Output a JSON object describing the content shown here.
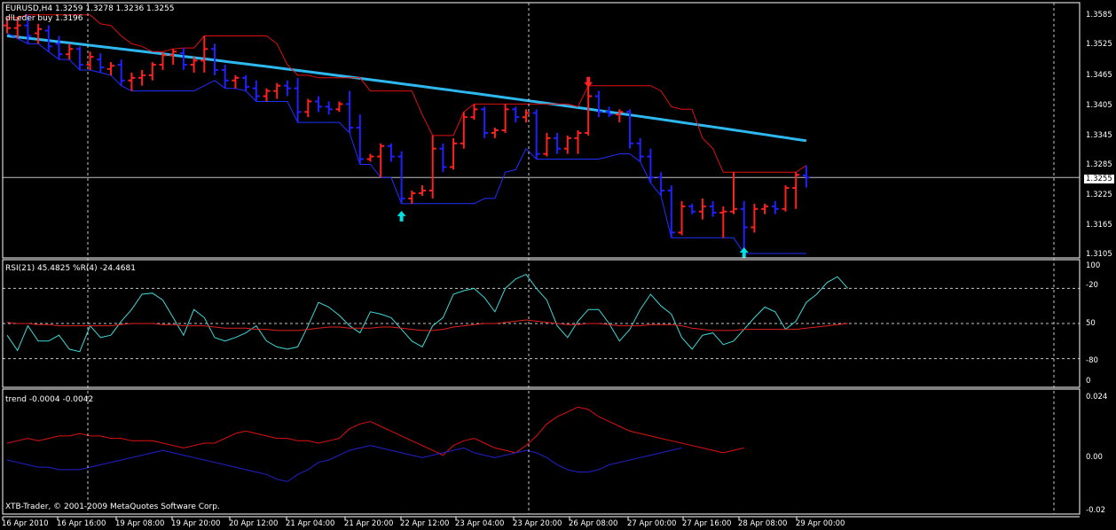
{
  "panes": {
    "main": {
      "header_line1": "EURUSD,H4  1.3259 1.3278 1.3236 1.3255",
      "header_line2": "dlLeder buy 1.3196",
      "price_labels": [
        "1.3585",
        "1.3525",
        "1.3465",
        "1.3405",
        "1.3345",
        "1.3285",
        "1.3225",
        "1.3165",
        "1.3105"
      ],
      "current_price": "1.3255"
    },
    "rsi": {
      "header": "RSI(21) 45.4825  %R(4) -24.4681",
      "scale_labels": [
        "100",
        "-20",
        "50",
        "-80",
        "0"
      ]
    },
    "trend": {
      "header": "trend -0.0004 -0.0042",
      "scale_labels": [
        "0.024",
        "0.00",
        "-0.02"
      ],
      "copyright": "XTB-Trader, © 2001-2009 MetaQuotes Software Corp."
    }
  },
  "time_labels": [
    "16 Apr 2010",
    "16 Apr 16:00",
    "19 Apr 08:00",
    "19 Apr 20:00",
    "20 Apr 12:00",
    "21 Apr 04:00",
    "21 Apr 20:00",
    "22 Apr 12:00",
    "23 Apr 04:00",
    "23 Apr 20:00",
    "26 Apr 08:00",
    "27 Apr 00:00",
    "27 Apr 16:00",
    "28 Apr 08:00",
    "29 Apr 00:00"
  ],
  "colors": {
    "bull": "#ff2020",
    "bear": "#2020ff",
    "ma_long": "#2fb8f0",
    "envelope_upper": "#e01010",
    "envelope_lower": "#2030ff",
    "rsi": "#3fd8d8",
    "rsi_slow": "#e02020",
    "trend_up": "#e01010",
    "trend_down": "#2020d0",
    "signal_arrow_up": "#00e0e0",
    "signal_arrow_down": "#ff2020",
    "grid": "#c8c8c8"
  },
  "chart_data": {
    "type": "candlestick-bars",
    "symbol": "EURUSD",
    "timeframe": "H4",
    "ylim": [
      1.3105,
      1.3585
    ],
    "bars": [
      {
        "o": 1.3545,
        "h": 1.356,
        "l": 1.353,
        "c": 1.354,
        "dir": "up"
      },
      {
        "o": 1.354,
        "h": 1.356,
        "l": 1.352,
        "c": 1.3545,
        "dir": "up"
      },
      {
        "o": 1.3545,
        "h": 1.3565,
        "l": 1.351,
        "c": 1.3525,
        "dir": "down"
      },
      {
        "o": 1.353,
        "h": 1.3548,
        "l": 1.351,
        "c": 1.3538,
        "dir": "up"
      },
      {
        "o": 1.3535,
        "h": 1.3545,
        "l": 1.3495,
        "c": 1.3505,
        "dir": "down"
      },
      {
        "o": 1.351,
        "h": 1.3525,
        "l": 1.348,
        "c": 1.349,
        "dir": "down"
      },
      {
        "o": 1.349,
        "h": 1.351,
        "l": 1.348,
        "c": 1.35,
        "dir": "up"
      },
      {
        "o": 1.35,
        "h": 1.3505,
        "l": 1.346,
        "c": 1.347,
        "dir": "down"
      },
      {
        "o": 1.347,
        "h": 1.3495,
        "l": 1.346,
        "c": 1.3485,
        "dir": "up"
      },
      {
        "o": 1.348,
        "h": 1.3492,
        "l": 1.3455,
        "c": 1.3465,
        "dir": "down"
      },
      {
        "o": 1.3462,
        "h": 1.3475,
        "l": 1.345,
        "c": 1.3468,
        "dir": "up"
      },
      {
        "o": 1.347,
        "h": 1.348,
        "l": 1.343,
        "c": 1.344,
        "dir": "down"
      },
      {
        "o": 1.344,
        "h": 1.3455,
        "l": 1.342,
        "c": 1.3445,
        "dir": "up"
      },
      {
        "o": 1.3445,
        "h": 1.346,
        "l": 1.343,
        "c": 1.345,
        "dir": "up"
      },
      {
        "o": 1.345,
        "h": 1.3475,
        "l": 1.344,
        "c": 1.347,
        "dir": "up"
      },
      {
        "o": 1.347,
        "h": 1.3495,
        "l": 1.346,
        "c": 1.3488,
        "dir": "up"
      },
      {
        "o": 1.3488,
        "h": 1.35,
        "l": 1.347,
        "c": 1.3495,
        "dir": "up"
      },
      {
        "o": 1.3492,
        "h": 1.3502,
        "l": 1.346,
        "c": 1.347,
        "dir": "down"
      },
      {
        "o": 1.347,
        "h": 1.3485,
        "l": 1.3455,
        "c": 1.3478,
        "dir": "up"
      },
      {
        "o": 1.3478,
        "h": 1.3525,
        "l": 1.3455,
        "c": 1.35,
        "dir": "up"
      },
      {
        "o": 1.35,
        "h": 1.351,
        "l": 1.345,
        "c": 1.346,
        "dir": "down"
      },
      {
        "o": 1.346,
        "h": 1.347,
        "l": 1.3425,
        "c": 1.344,
        "dir": "down"
      },
      {
        "o": 1.344,
        "h": 1.345,
        "l": 1.3425,
        "c": 1.3445,
        "dir": "up"
      },
      {
        "o": 1.3445,
        "h": 1.345,
        "l": 1.342,
        "c": 1.3428,
        "dir": "down"
      },
      {
        "o": 1.3425,
        "h": 1.344,
        "l": 1.34,
        "c": 1.341,
        "dir": "down"
      },
      {
        "o": 1.341,
        "h": 1.3425,
        "l": 1.34,
        "c": 1.342,
        "dir": "up"
      },
      {
        "o": 1.342,
        "h": 1.3435,
        "l": 1.3405,
        "c": 1.343,
        "dir": "up"
      },
      {
        "o": 1.343,
        "h": 1.344,
        "l": 1.341,
        "c": 1.3425,
        "dir": "down"
      },
      {
        "o": 1.3425,
        "h": 1.3445,
        "l": 1.336,
        "c": 1.338,
        "dir": "down"
      },
      {
        "o": 1.338,
        "h": 1.3405,
        "l": 1.337,
        "c": 1.34,
        "dir": "up"
      },
      {
        "o": 1.34,
        "h": 1.341,
        "l": 1.338,
        "c": 1.339,
        "dir": "down"
      },
      {
        "o": 1.339,
        "h": 1.34,
        "l": 1.3375,
        "c": 1.3385,
        "dir": "down"
      },
      {
        "o": 1.3385,
        "h": 1.34,
        "l": 1.338,
        "c": 1.3395,
        "dir": "up"
      },
      {
        "o": 1.3395,
        "h": 1.342,
        "l": 1.334,
        "c": 1.335,
        "dir": "down"
      },
      {
        "o": 1.335,
        "h": 1.3375,
        "l": 1.328,
        "c": 1.329,
        "dir": "down"
      },
      {
        "o": 1.329,
        "h": 1.33,
        "l": 1.3285,
        "c": 1.3295,
        "dir": "up"
      },
      {
        "o": 1.3295,
        "h": 1.332,
        "l": 1.3255,
        "c": 1.3315,
        "dir": "up"
      },
      {
        "o": 1.3315,
        "h": 1.332,
        "l": 1.3285,
        "c": 1.3295,
        "dir": "down"
      },
      {
        "o": 1.3295,
        "h": 1.3305,
        "l": 1.3205,
        "c": 1.3215,
        "dir": "down"
      },
      {
        "o": 1.3215,
        "h": 1.323,
        "l": 1.3205,
        "c": 1.3225,
        "dir": "up"
      },
      {
        "o": 1.3225,
        "h": 1.324,
        "l": 1.322,
        "c": 1.323,
        "dir": "up"
      },
      {
        "o": 1.323,
        "h": 1.3335,
        "l": 1.3215,
        "c": 1.331,
        "dir": "up"
      },
      {
        "o": 1.331,
        "h": 1.332,
        "l": 1.3265,
        "c": 1.3275,
        "dir": "down"
      },
      {
        "o": 1.3275,
        "h": 1.333,
        "l": 1.327,
        "c": 1.332,
        "dir": "up"
      },
      {
        "o": 1.332,
        "h": 1.338,
        "l": 1.331,
        "c": 1.337,
        "dir": "up"
      },
      {
        "o": 1.337,
        "h": 1.3395,
        "l": 1.3365,
        "c": 1.3385,
        "dir": "up"
      },
      {
        "o": 1.3385,
        "h": 1.339,
        "l": 1.333,
        "c": 1.334,
        "dir": "down"
      },
      {
        "o": 1.334,
        "h": 1.335,
        "l": 1.333,
        "c": 1.3345,
        "dir": "up"
      },
      {
        "o": 1.3345,
        "h": 1.3395,
        "l": 1.334,
        "c": 1.3385,
        "dir": "up"
      },
      {
        "o": 1.3385,
        "h": 1.339,
        "l": 1.336,
        "c": 1.337,
        "dir": "down"
      },
      {
        "o": 1.337,
        "h": 1.3385,
        "l": 1.336,
        "c": 1.3378,
        "dir": "up"
      },
      {
        "o": 1.3378,
        "h": 1.3385,
        "l": 1.329,
        "c": 1.33,
        "dir": "down"
      },
      {
        "o": 1.33,
        "h": 1.334,
        "l": 1.3295,
        "c": 1.333,
        "dir": "up"
      },
      {
        "o": 1.333,
        "h": 1.334,
        "l": 1.33,
        "c": 1.331,
        "dir": "down"
      },
      {
        "o": 1.331,
        "h": 1.3335,
        "l": 1.33,
        "c": 1.333,
        "dir": "up"
      },
      {
        "o": 1.333,
        "h": 1.3345,
        "l": 1.33,
        "c": 1.334,
        "dir": "up"
      },
      {
        "o": 1.334,
        "h": 1.343,
        "l": 1.3335,
        "c": 1.341,
        "dir": "up"
      },
      {
        "o": 1.341,
        "h": 1.342,
        "l": 1.337,
        "c": 1.338,
        "dir": "down"
      },
      {
        "o": 1.338,
        "h": 1.339,
        "l": 1.337,
        "c": 1.3375,
        "dir": "down"
      },
      {
        "o": 1.3375,
        "h": 1.3385,
        "l": 1.336,
        "c": 1.338,
        "dir": "up"
      },
      {
        "o": 1.338,
        "h": 1.3385,
        "l": 1.331,
        "c": 1.332,
        "dir": "down"
      },
      {
        "o": 1.332,
        "h": 1.333,
        "l": 1.3285,
        "c": 1.3295,
        "dir": "down"
      },
      {
        "o": 1.3295,
        "h": 1.331,
        "l": 1.3245,
        "c": 1.3255,
        "dir": "down"
      },
      {
        "o": 1.3255,
        "h": 1.3265,
        "l": 1.322,
        "c": 1.323,
        "dir": "down"
      },
      {
        "o": 1.323,
        "h": 1.324,
        "l": 1.314,
        "c": 1.315,
        "dir": "down"
      },
      {
        "o": 1.315,
        "h": 1.321,
        "l": 1.3145,
        "c": 1.32,
        "dir": "up"
      },
      {
        "o": 1.32,
        "h": 1.3205,
        "l": 1.3185,
        "c": 1.319,
        "dir": "down"
      },
      {
        "o": 1.319,
        "h": 1.3215,
        "l": 1.3175,
        "c": 1.32,
        "dir": "up"
      },
      {
        "o": 1.32,
        "h": 1.321,
        "l": 1.318,
        "c": 1.3188,
        "dir": "down"
      },
      {
        "o": 1.3188,
        "h": 1.32,
        "l": 1.314,
        "c": 1.319,
        "dir": "up"
      },
      {
        "o": 1.319,
        "h": 1.3265,
        "l": 1.3185,
        "c": 1.3195,
        "dir": "up"
      },
      {
        "o": 1.3195,
        "h": 1.321,
        "l": 1.311,
        "c": 1.316,
        "dir": "down"
      },
      {
        "o": 1.316,
        "h": 1.3205,
        "l": 1.315,
        "c": 1.3195,
        "dir": "up"
      },
      {
        "o": 1.3195,
        "h": 1.3205,
        "l": 1.3185,
        "c": 1.32,
        "dir": "up"
      },
      {
        "o": 1.32,
        "h": 1.321,
        "l": 1.3185,
        "c": 1.3195,
        "dir": "down"
      },
      {
        "o": 1.3195,
        "h": 1.324,
        "l": 1.319,
        "c": 1.3235,
        "dir": "up"
      },
      {
        "o": 1.3235,
        "h": 1.3265,
        "l": 1.3195,
        "c": 1.326,
        "dir": "up"
      },
      {
        "o": 1.3259,
        "h": 1.3278,
        "l": 1.3236,
        "c": 1.3255,
        "dir": "down"
      }
    ],
    "rsi": [
      40,
      27,
      48,
      35,
      35,
      40,
      28,
      26,
      48,
      38,
      40,
      52,
      62,
      75,
      76,
      70,
      55,
      40,
      62,
      55,
      38,
      35,
      38,
      42,
      48,
      35,
      30,
      28,
      30,
      48,
      68,
      64,
      57,
      48,
      42,
      60,
      58,
      55,
      45,
      35,
      30,
      48,
      55,
      75,
      78,
      80,
      72,
      60,
      80,
      88,
      92,
      80,
      70,
      48,
      38,
      52,
      62,
      62,
      50,
      35,
      45,
      62,
      75,
      65,
      58,
      38,
      28,
      40,
      42,
      32,
      35,
      45,
      55,
      64,
      60,
      45,
      52,
      68,
      75,
      85,
      90,
      80
    ],
    "rsi_slow": [
      51,
      50,
      50,
      49,
      49,
      48,
      48,
      48,
      48,
      48,
      48,
      49,
      50,
      50,
      50,
      49,
      49,
      48,
      48,
      48,
      47,
      46,
      46,
      46,
      45,
      45,
      44,
      44,
      44,
      45,
      46,
      47,
      47,
      46,
      46,
      46,
      47,
      47,
      46,
      45,
      44,
      44,
      45,
      47,
      48,
      49,
      50,
      50,
      51,
      52,
      53,
      52,
      51,
      50,
      49,
      49,
      50,
      50,
      49,
      48,
      48,
      48,
      49,
      49,
      49,
      48,
      46,
      45,
      44,
      44,
      44,
      45,
      45,
      45,
      45,
      45,
      45,
      46,
      47,
      48,
      49,
      50
    ],
    "trend_up": [
      0.003,
      0.004,
      0.005,
      0.004,
      0.005,
      0.006,
      0.006,
      0.007,
      0.006,
      0.006,
      0.005,
      0.005,
      0.004,
      0.004,
      0.004,
      0.003,
      0.002,
      0.001,
      0.002,
      0.003,
      0.003,
      0.005,
      0.007,
      0.008,
      0.007,
      0.006,
      0.005,
      0.005,
      0.004,
      0.004,
      0.003,
      0.004,
      0.005,
      0.009,
      0.011,
      0.012,
      0.01,
      0.008,
      0.006,
      0.004,
      0.002,
      0.0,
      -0.002,
      0.002,
      0.004,
      0.005,
      0.003,
      0.001,
      0.0,
      -0.001,
      0.002,
      0.006,
      0.011,
      0.014,
      0.016,
      0.018,
      0.017,
      0.014,
      0.012,
      0.01,
      0.008,
      0.007,
      0.006,
      0.005,
      0.004,
      0.003,
      0.002,
      0.001,
      0.0,
      -0.001,
      0.0,
      0.001
    ],
    "trend_down": [
      -0.004,
      -0.005,
      -0.006,
      -0.007,
      -0.007,
      -0.008,
      -0.008,
      -0.008,
      -0.007,
      -0.006,
      -0.005,
      -0.004,
      -0.003,
      -0.002,
      -0.001,
      0.0,
      -0.001,
      -0.002,
      -0.003,
      -0.004,
      -0.005,
      -0.006,
      -0.007,
      -0.008,
      -0.009,
      -0.01,
      -0.012,
      -0.013,
      -0.01,
      -0.008,
      -0.005,
      -0.004,
      -0.002,
      0.0,
      0.001,
      0.002,
      0.001,
      0.0,
      -0.001,
      -0.002,
      -0.003,
      -0.002,
      -0.001,
      0.0,
      0.001,
      -0.001,
      -0.002,
      -0.003,
      -0.002,
      -0.001,
      0.0,
      -0.001,
      -0.003,
      -0.006,
      -0.008,
      -0.009,
      -0.009,
      -0.008,
      -0.006,
      -0.005,
      -0.004,
      -0.003,
      -0.002,
      -0.001,
      0.0,
      0.001
    ],
    "trend_ylim": [
      -0.025,
      0.024
    ],
    "signals": [
      {
        "type": "buy",
        "bar": 38
      },
      {
        "type": "sell",
        "bar": 56
      },
      {
        "type": "buy",
        "bar": 71
      }
    ]
  }
}
